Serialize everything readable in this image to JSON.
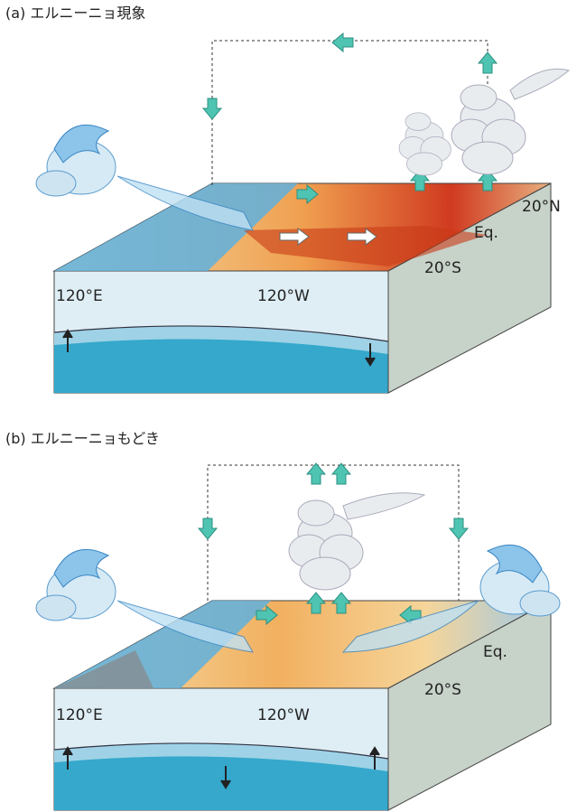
{
  "panels": [
    {
      "title": "(a) エルニーニョ現象",
      "labels": {
        "north": "20°N",
        "equator": "Eq.",
        "south": "20°S",
        "west": "120°E",
        "east": "120°W"
      }
    },
    {
      "title": "(b) エルニーニョもどき",
      "labels": {
        "equator": "Eq.",
        "south": "20°S",
        "west": "120°E",
        "east": "120°W"
      }
    }
  ]
}
